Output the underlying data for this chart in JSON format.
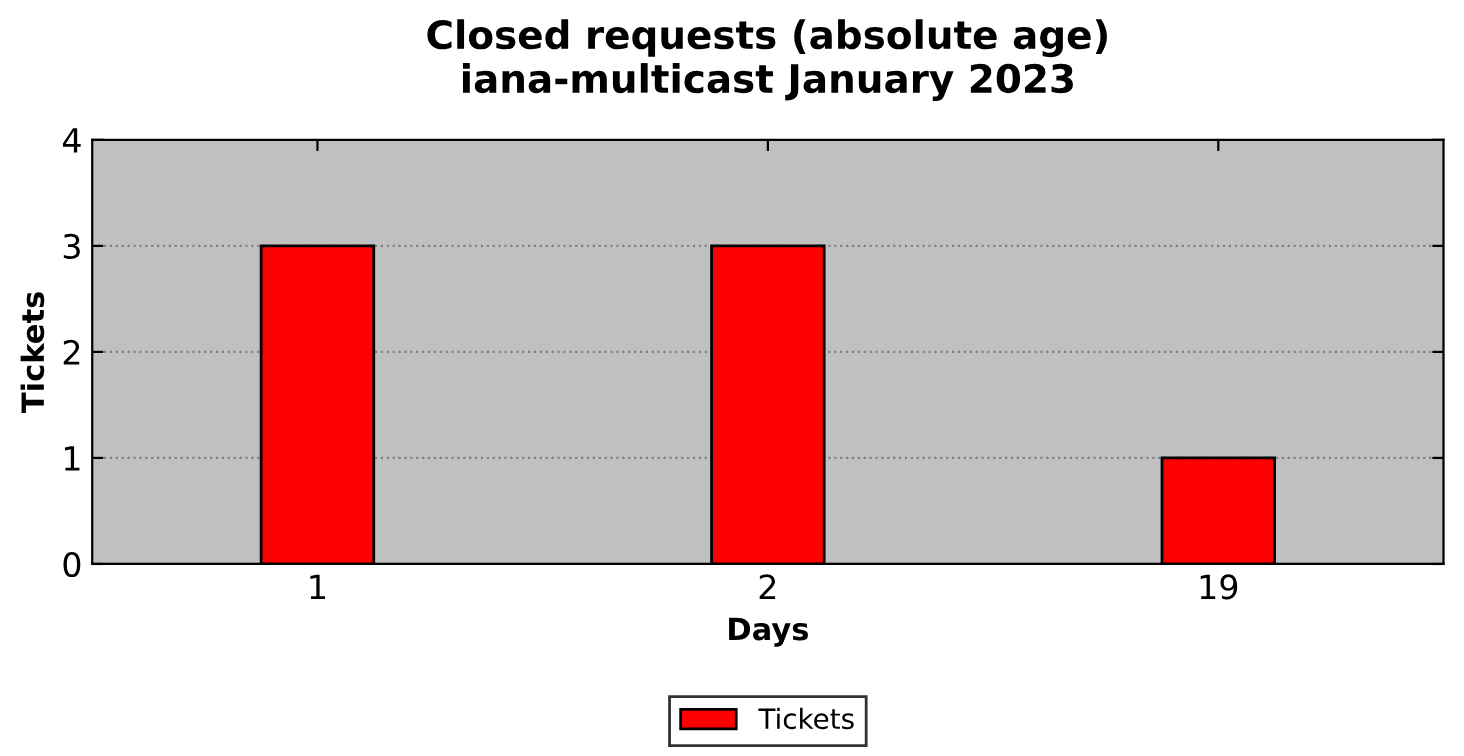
{
  "chart_data": {
    "type": "bar",
    "title": "Closed requests (absolute age)\niana-multicast January 2023",
    "xlabel": "Days",
    "ylabel": "Tickets",
    "categories": [
      "1",
      "2",
      "19"
    ],
    "series": [
      {
        "name": "Tickets",
        "color": "#ff0000",
        "values": [
          3,
          3,
          1
        ]
      }
    ],
    "ylim": [
      0,
      4
    ],
    "yticks": [
      0,
      1,
      2,
      3,
      4
    ],
    "grid": "y",
    "legend": "bottom"
  }
}
